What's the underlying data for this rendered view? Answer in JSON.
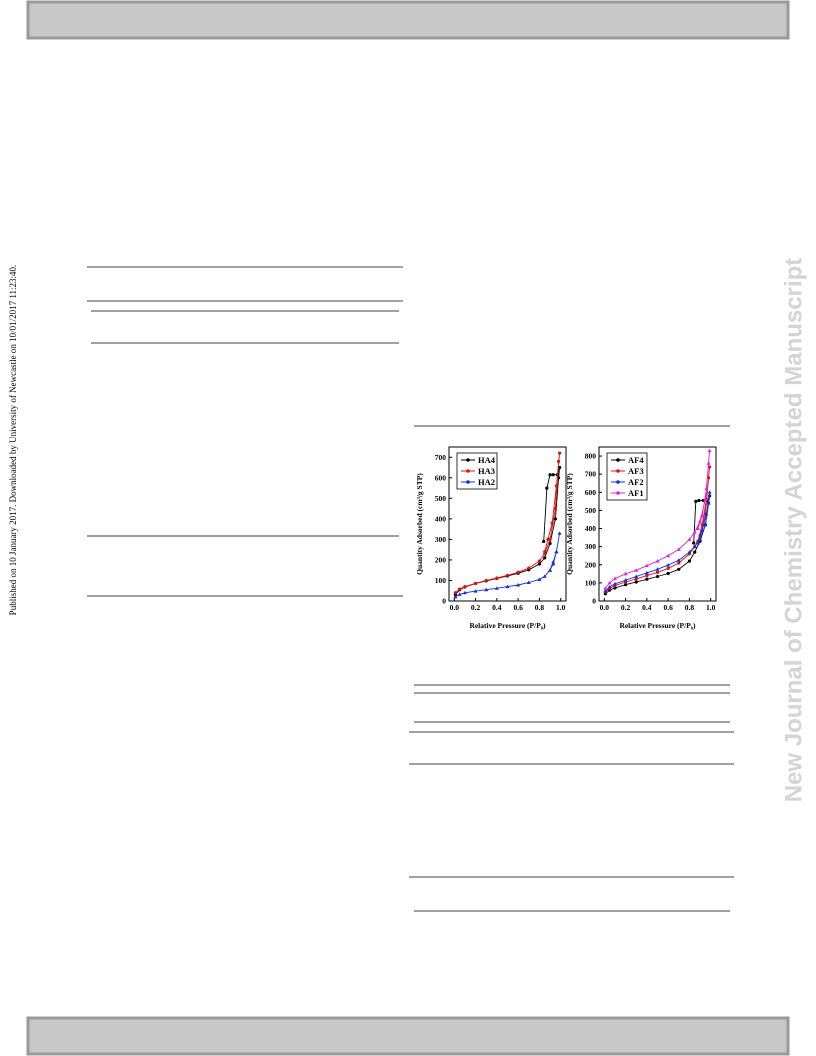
{
  "side_note": "Published on 10 January 2017. Downloaded by University of Newcastle on 10/01/2017 11:23:40.",
  "watermark": "New Journal of Chemistry Accepted Manuscript",
  "chart_data": [
    {
      "type": "line",
      "xlabel": "Relative Pressure (P/P₀)",
      "ylabel": "Quantity Adsorbed (cm³/g STP)",
      "xlim": [
        -0.05,
        1.05
      ],
      "ylim": [
        0,
        750
      ],
      "xticks": [
        {
          "value": 0,
          "label": "0.0"
        },
        {
          "value": 0.2,
          "label": "0.2"
        },
        {
          "value": 0.4,
          "label": "0.4"
        },
        {
          "value": 0.6,
          "label": "0.6"
        },
        {
          "value": 0.8,
          "label": "0.8"
        },
        {
          "value": 1,
          "label": "1.0"
        }
      ],
      "yticks": [
        0,
        100,
        200,
        300,
        400,
        500,
        600,
        700
      ],
      "series": [
        {
          "name": "HA4",
          "color": "#000000",
          "marker": "circle",
          "x": [
            0.01,
            0.05,
            0.1,
            0.2,
            0.3,
            0.4,
            0.5,
            0.6,
            0.7,
            0.8,
            0.85,
            0.9,
            0.95,
            0.98,
            0.99,
            0.97,
            0.93,
            0.9,
            0.87,
            0.84
          ],
          "values": [
            30,
            55,
            68,
            85,
            98,
            110,
            122,
            135,
            152,
            180,
            210,
            280,
            400,
            600,
            650,
            615,
            615,
            615,
            550,
            290
          ]
        },
        {
          "name": "HA3",
          "color": "#e01010",
          "marker": "circle",
          "x": [
            0.01,
            0.05,
            0.1,
            0.2,
            0.3,
            0.4,
            0.5,
            0.6,
            0.7,
            0.8,
            0.85,
            0.9,
            0.95,
            0.98,
            0.99,
            0.96,
            0.92,
            0.88,
            0.85
          ],
          "values": [
            40,
            58,
            70,
            86,
            100,
            112,
            125,
            140,
            160,
            195,
            230,
            300,
            450,
            680,
            720,
            560,
            380,
            300,
            240
          ]
        },
        {
          "name": "HA2",
          "color": "#1030e0",
          "marker": "triangle",
          "x": [
            0.01,
            0.05,
            0.1,
            0.2,
            0.3,
            0.4,
            0.5,
            0.6,
            0.7,
            0.8,
            0.85,
            0.9,
            0.93,
            0.96,
            0.99,
            0.96,
            0.93,
            0.9
          ],
          "values": [
            20,
            32,
            40,
            48,
            55,
            62,
            70,
            78,
            90,
            105,
            120,
            150,
            180,
            240,
            330,
            240,
            190,
            150
          ]
        }
      ]
    },
    {
      "type": "line",
      "xlabel": "Relative Pressure (P/P₀)",
      "ylabel": "Quantity Adsorbed (cm³/g STP)",
      "xlim": [
        -0.05,
        1.05
      ],
      "ylim": [
        0,
        850
      ],
      "xticks": [
        {
          "value": 0,
          "label": "0.0"
        },
        {
          "value": 0.2,
          "label": "0.2"
        },
        {
          "value": 0.4,
          "label": "0.4"
        },
        {
          "value": 0.6,
          "label": "0.6"
        },
        {
          "value": 0.8,
          "label": "0.8"
        },
        {
          "value": 1,
          "label": "1.0"
        }
      ],
      "yticks": [
        0,
        100,
        200,
        300,
        400,
        500,
        600,
        700,
        800
      ],
      "series": [
        {
          "name": "AF4",
          "color": "#000000",
          "marker": "circle",
          "x": [
            0.01,
            0.05,
            0.1,
            0.2,
            0.3,
            0.4,
            0.5,
            0.6,
            0.7,
            0.8,
            0.85,
            0.9,
            0.95,
            0.98,
            0.99,
            0.97,
            0.93,
            0.89,
            0.86,
            0.84
          ],
          "values": [
            40,
            60,
            72,
            90,
            105,
            120,
            135,
            152,
            175,
            220,
            270,
            330,
            420,
            540,
            580,
            555,
            555,
            555,
            550,
            320
          ]
        },
        {
          "name": "AF3",
          "color": "#e01010",
          "marker": "circle",
          "x": [
            0.01,
            0.05,
            0.1,
            0.2,
            0.3,
            0.4,
            0.5,
            0.6,
            0.7,
            0.8,
            0.85,
            0.9,
            0.95,
            0.98,
            0.99,
            0.96,
            0.92,
            0.88
          ],
          "values": [
            50,
            70,
            85,
            105,
            122,
            140,
            158,
            180,
            210,
            260,
            300,
            360,
            480,
            680,
            740,
            560,
            420,
            330
          ]
        },
        {
          "name": "AF2",
          "color": "#1030e0",
          "marker": "triangle",
          "x": [
            0.01,
            0.05,
            0.1,
            0.2,
            0.3,
            0.4,
            0.5,
            0.6,
            0.7,
            0.8,
            0.85,
            0.9,
            0.95,
            0.98,
            0.99,
            0.96,
            0.92,
            0.88
          ],
          "values": [
            55,
            78,
            95,
            115,
            135,
            155,
            175,
            198,
            225,
            270,
            300,
            340,
            420,
            540,
            600,
            480,
            390,
            320
          ]
        },
        {
          "name": "AF1",
          "color": "#e020e0",
          "marker": "triangle",
          "x": [
            0.01,
            0.05,
            0.1,
            0.2,
            0.3,
            0.4,
            0.5,
            0.6,
            0.7,
            0.8,
            0.85,
            0.9,
            0.95,
            0.98,
            0.99,
            0.96,
            0.92,
            0.88
          ],
          "values": [
            70,
            100,
            125,
            150,
            170,
            195,
            220,
            250,
            285,
            340,
            380,
            440,
            560,
            760,
            830,
            620,
            470,
            400
          ]
        }
      ]
    }
  ]
}
